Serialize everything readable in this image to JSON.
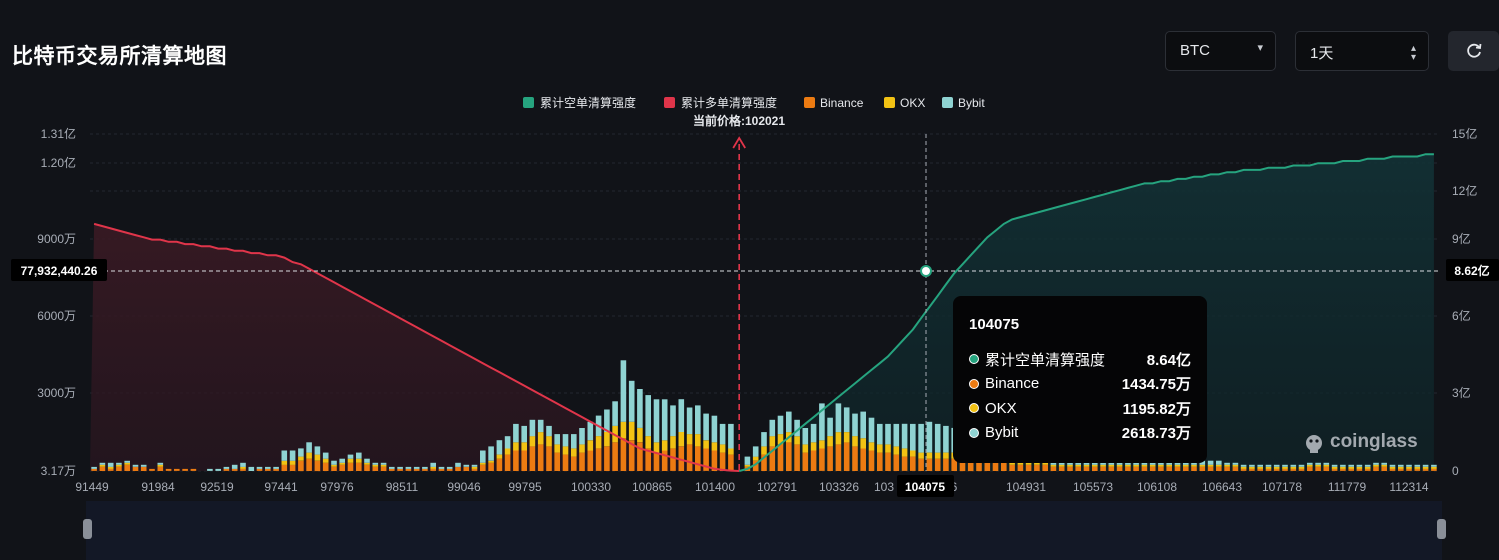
{
  "header": {
    "title": "比特币交易所清算地图",
    "coin_value": "BTC",
    "period_value": "1天"
  },
  "icons": {
    "coin_dropdown": "caret-down-icon",
    "period_stepper": "updown-chevron-icon",
    "refresh": "refresh-icon",
    "watermark": "coinglass-logo-icon"
  },
  "colors": {
    "short_line": "#26a47f",
    "long_line": "#e0354a",
    "binance": "#ec7b12",
    "okx": "#f2c214",
    "bybit": "#8fd3d2"
  },
  "chart_data": {
    "type": "bar",
    "legend": [
      "累计空单清算强度",
      "累计多单清算强度",
      "Binance",
      "OKX",
      "Bybit"
    ],
    "legend_position": "top-center",
    "current_price_label": "当前价格:102021",
    "grid": true,
    "x_tick_labels": [
      "91449",
      "91984",
      "92519",
      "97441",
      "97976",
      "98511",
      "99046",
      "99795",
      "100330",
      "100865",
      "101400",
      "102791",
      "103326",
      "103",
      "104075",
      "4396",
      "104931",
      "105573",
      "106108",
      "106643",
      "107178",
      "111779",
      "112314"
    ],
    "y_left_ticks": [
      "3.17万",
      "3000万",
      "6000万",
      "9000万",
      "1.20亿",
      "1.31亿"
    ],
    "y_left_range": [
      31700,
      131000000
    ],
    "y_right_ticks": [
      "0",
      "3亿",
      "6亿",
      "9亿",
      "12亿",
      "15亿"
    ],
    "y_right_range": [
      0,
      1500000000
    ],
    "crosshair": {
      "left_label": "77,932,440.26",
      "right_label": "8.62亿",
      "x_label": "104075"
    },
    "bar_count": 163,
    "current_price_index": 78,
    "hover_index": 101,
    "series": [
      {
        "name": "Binance",
        "values": [
          1,
          2,
          1,
          2,
          3,
          2,
          2,
          1,
          2,
          1,
          1,
          1,
          1,
          0,
          0,
          0,
          1,
          1,
          1,
          0,
          1,
          1,
          1,
          3,
          3,
          5,
          6,
          5,
          4,
          2,
          3,
          4,
          4,
          3,
          2,
          2,
          1,
          1,
          1,
          1,
          1,
          1,
          1,
          1,
          2,
          2,
          1,
          3,
          4,
          6,
          8,
          10,
          10,
          12,
          13,
          12,
          9,
          8,
          7,
          9,
          10,
          11,
          12,
          14,
          16,
          15,
          14,
          11,
          9,
          10,
          11,
          12,
          13,
          12,
          11,
          10,
          9,
          8,
          0,
          2,
          5,
          8,
          12,
          13,
          14,
          13,
          9,
          10,
          11,
          12,
          13,
          14,
          12,
          11,
          10,
          9,
          9,
          8,
          7,
          7,
          6,
          6,
          6,
          6,
          6,
          5,
          5,
          5,
          4,
          4,
          4,
          3,
          3,
          3,
          3,
          3,
          2,
          2,
          2,
          2,
          2,
          2,
          2,
          2,
          2,
          2,
          2,
          2,
          2,
          2,
          2,
          2,
          2,
          2,
          2,
          2,
          2,
          2,
          2,
          1,
          1,
          1,
          1,
          1,
          1,
          1,
          1,
          2,
          2,
          2,
          1,
          1,
          1,
          1,
          1,
          2,
          2,
          1,
          1,
          1,
          1,
          1,
          1
        ]
      },
      {
        "name": "OKX",
        "values": [
          0,
          1,
          1,
          1,
          1,
          0,
          0,
          0,
          1,
          0,
          0,
          0,
          0,
          0,
          0,
          0,
          0,
          0,
          1,
          0,
          0,
          0,
          0,
          2,
          2,
          2,
          3,
          3,
          2,
          1,
          1,
          2,
          2,
          1,
          1,
          1,
          0,
          0,
          0,
          0,
          0,
          1,
          0,
          0,
          0,
          0,
          1,
          1,
          1,
          2,
          3,
          4,
          4,
          5,
          6,
          5,
          4,
          4,
          4,
          4,
          5,
          6,
          7,
          8,
          8,
          9,
          7,
          6,
          5,
          5,
          6,
          7,
          5,
          6,
          4,
          4,
          4,
          3,
          0,
          1,
          2,
          4,
          5,
          5,
          5,
          4,
          4,
          4,
          4,
          5,
          6,
          5,
          5,
          5,
          4,
          4,
          4,
          4,
          4,
          3,
          3,
          3,
          3,
          3,
          3,
          3,
          2,
          2,
          2,
          2,
          2,
          1,
          1,
          1,
          1,
          1,
          1,
          1,
          1,
          1,
          1,
          1,
          1,
          1,
          1,
          1,
          1,
          1,
          1,
          1,
          1,
          1,
          1,
          1,
          1,
          1,
          1,
          1,
          1,
          1,
          1,
          1,
          1,
          1,
          1,
          1,
          1,
          1,
          1,
          1,
          1,
          1,
          1,
          1,
          1,
          1,
          1,
          1,
          1,
          1,
          1,
          1,
          1
        ]
      },
      {
        "name": "Bybit",
        "values": [
          1,
          1,
          2,
          1,
          1,
          1,
          1,
          0,
          1,
          0,
          0,
          0,
          0,
          0,
          1,
          1,
          1,
          2,
          2,
          2,
          1,
          1,
          1,
          5,
          5,
          4,
          5,
          4,
          3,
          2,
          2,
          2,
          3,
          2,
          1,
          1,
          1,
          1,
          1,
          1,
          1,
          2,
          1,
          1,
          2,
          1,
          1,
          6,
          7,
          7,
          6,
          9,
          8,
          8,
          6,
          5,
          5,
          6,
          7,
          8,
          9,
          10,
          11,
          12,
          30,
          20,
          19,
          20,
          21,
          20,
          15,
          16,
          13,
          14,
          13,
          13,
          10,
          12,
          0,
          4,
          5,
          7,
          8,
          9,
          10,
          8,
          8,
          9,
          18,
          9,
          14,
          12,
          11,
          13,
          12,
          10,
          10,
          11,
          12,
          13,
          14,
          15,
          14,
          13,
          12,
          11,
          10,
          9,
          8,
          8,
          7,
          6,
          5,
          5,
          4,
          4,
          3,
          3,
          3,
          2,
          2,
          2,
          2,
          2,
          2,
          2,
          2,
          2,
          2,
          2,
          2,
          2,
          2,
          2,
          2,
          2,
          2,
          1,
          1,
          1,
          1,
          1,
          1,
          1,
          1,
          1,
          1,
          1,
          1,
          1,
          1,
          1,
          1,
          1,
          1,
          1,
          1,
          1,
          1,
          1,
          1,
          1,
          1
        ]
      },
      {
        "name": "累计多单清算强度",
        "values": [
          11.0,
          10.9,
          10.8,
          10.7,
          10.6,
          10.5,
          10.4,
          10.3,
          10.3,
          10.2,
          10.2,
          10.1,
          10.1,
          10.0,
          10.0,
          9.9,
          9.9,
          9.8,
          9.8,
          9.7,
          9.7,
          9.6,
          9.6,
          9.5,
          9.3,
          9.2,
          9.0,
          8.8,
          8.6,
          8.4,
          8.2,
          8.0,
          7.8,
          7.6,
          7.4,
          7.2,
          7.0,
          6.8,
          6.6,
          6.4,
          6.2,
          6.0,
          5.8,
          5.6,
          5.4,
          5.2,
          5.0,
          4.8,
          4.6,
          4.4,
          4.2,
          4.0,
          3.8,
          3.6,
          3.4,
          3.2,
          3.0,
          2.8,
          2.6,
          2.4,
          2.2,
          2.0,
          1.8,
          1.6,
          1.4,
          1.2,
          1.0,
          0.9,
          0.8,
          0.7,
          0.6,
          0.5,
          0.4,
          0.3,
          0.2,
          0.1,
          0.05,
          0.02,
          0,
          0,
          0,
          0,
          0,
          0,
          0,
          0,
          0,
          0,
          0,
          0,
          0,
          0,
          0,
          0,
          0,
          0,
          0,
          0,
          0,
          0,
          0,
          0,
          0,
          0,
          0,
          0,
          0,
          0,
          0,
          0,
          0,
          0,
          0,
          0,
          0,
          0,
          0,
          0,
          0,
          0,
          0,
          0,
          0,
          0,
          0,
          0,
          0,
          0,
          0,
          0,
          0,
          0,
          0,
          0,
          0,
          0,
          0,
          0,
          0,
          0,
          0,
          0,
          0,
          0,
          0,
          0,
          0,
          0,
          0,
          0,
          0,
          0,
          0,
          0,
          0,
          0,
          0,
          0,
          0,
          0,
          0,
          0,
          0,
          0,
          0,
          0,
          0
        ]
      },
      {
        "name": "累计空单清算强度",
        "values": [
          0,
          0,
          0,
          0,
          0,
          0,
          0,
          0,
          0,
          0,
          0,
          0,
          0,
          0,
          0,
          0,
          0,
          0,
          0,
          0,
          0,
          0,
          0,
          0,
          0,
          0,
          0,
          0,
          0,
          0,
          0,
          0,
          0,
          0,
          0,
          0,
          0,
          0,
          0,
          0,
          0,
          0,
          0,
          0,
          0,
          0,
          0,
          0,
          0,
          0,
          0,
          0,
          0,
          0,
          0,
          0,
          0,
          0,
          0,
          0,
          0,
          0,
          0,
          0,
          0,
          0,
          0,
          0,
          0,
          0,
          0,
          0,
          0,
          0,
          0,
          0,
          0,
          0,
          0,
          0.1,
          0.3,
          0.6,
          0.9,
          1.2,
          1.5,
          1.8,
          2.1,
          2.4,
          2.7,
          3.0,
          3.3,
          3.6,
          3.9,
          4.2,
          4.5,
          4.8,
          5.1,
          5.5,
          5.9,
          6.3,
          6.8,
          7.3,
          7.8,
          8.3,
          8.8,
          9.2,
          9.6,
          10.0,
          10.4,
          10.7,
          11.0,
          11.2,
          11.3,
          11.4,
          11.5,
          11.6,
          11.7,
          11.8,
          11.9,
          12.0,
          12.1,
          12.2,
          12.3,
          12.4,
          12.5,
          12.6,
          12.7,
          12.8,
          12.8,
          12.9,
          12.9,
          13.0,
          13.0,
          13.1,
          13.1,
          13.2,
          13.2,
          13.3,
          13.3,
          13.4,
          13.4,
          13.4,
          13.5,
          13.5,
          13.5,
          13.6,
          13.6,
          13.6,
          13.7,
          13.7,
          13.7,
          13.8,
          13.8,
          13.8,
          13.9,
          13.9,
          13.9,
          14.0,
          14.0,
          14.0,
          14.0,
          14.1,
          14.1,
          14.1,
          14.1,
          14.1,
          14.1
        ]
      }
    ]
  },
  "tooltip": {
    "header": "104075",
    "rows": [
      {
        "label": "累计空单清算强度",
        "value": "8.64亿"
      },
      {
        "label": "Binance",
        "value": "1434.75万"
      },
      {
        "label": "OKX",
        "value": "1195.82万"
      },
      {
        "label": "Bybit",
        "value": "2618.73万"
      }
    ]
  },
  "watermark": {
    "text": "coinglass"
  }
}
